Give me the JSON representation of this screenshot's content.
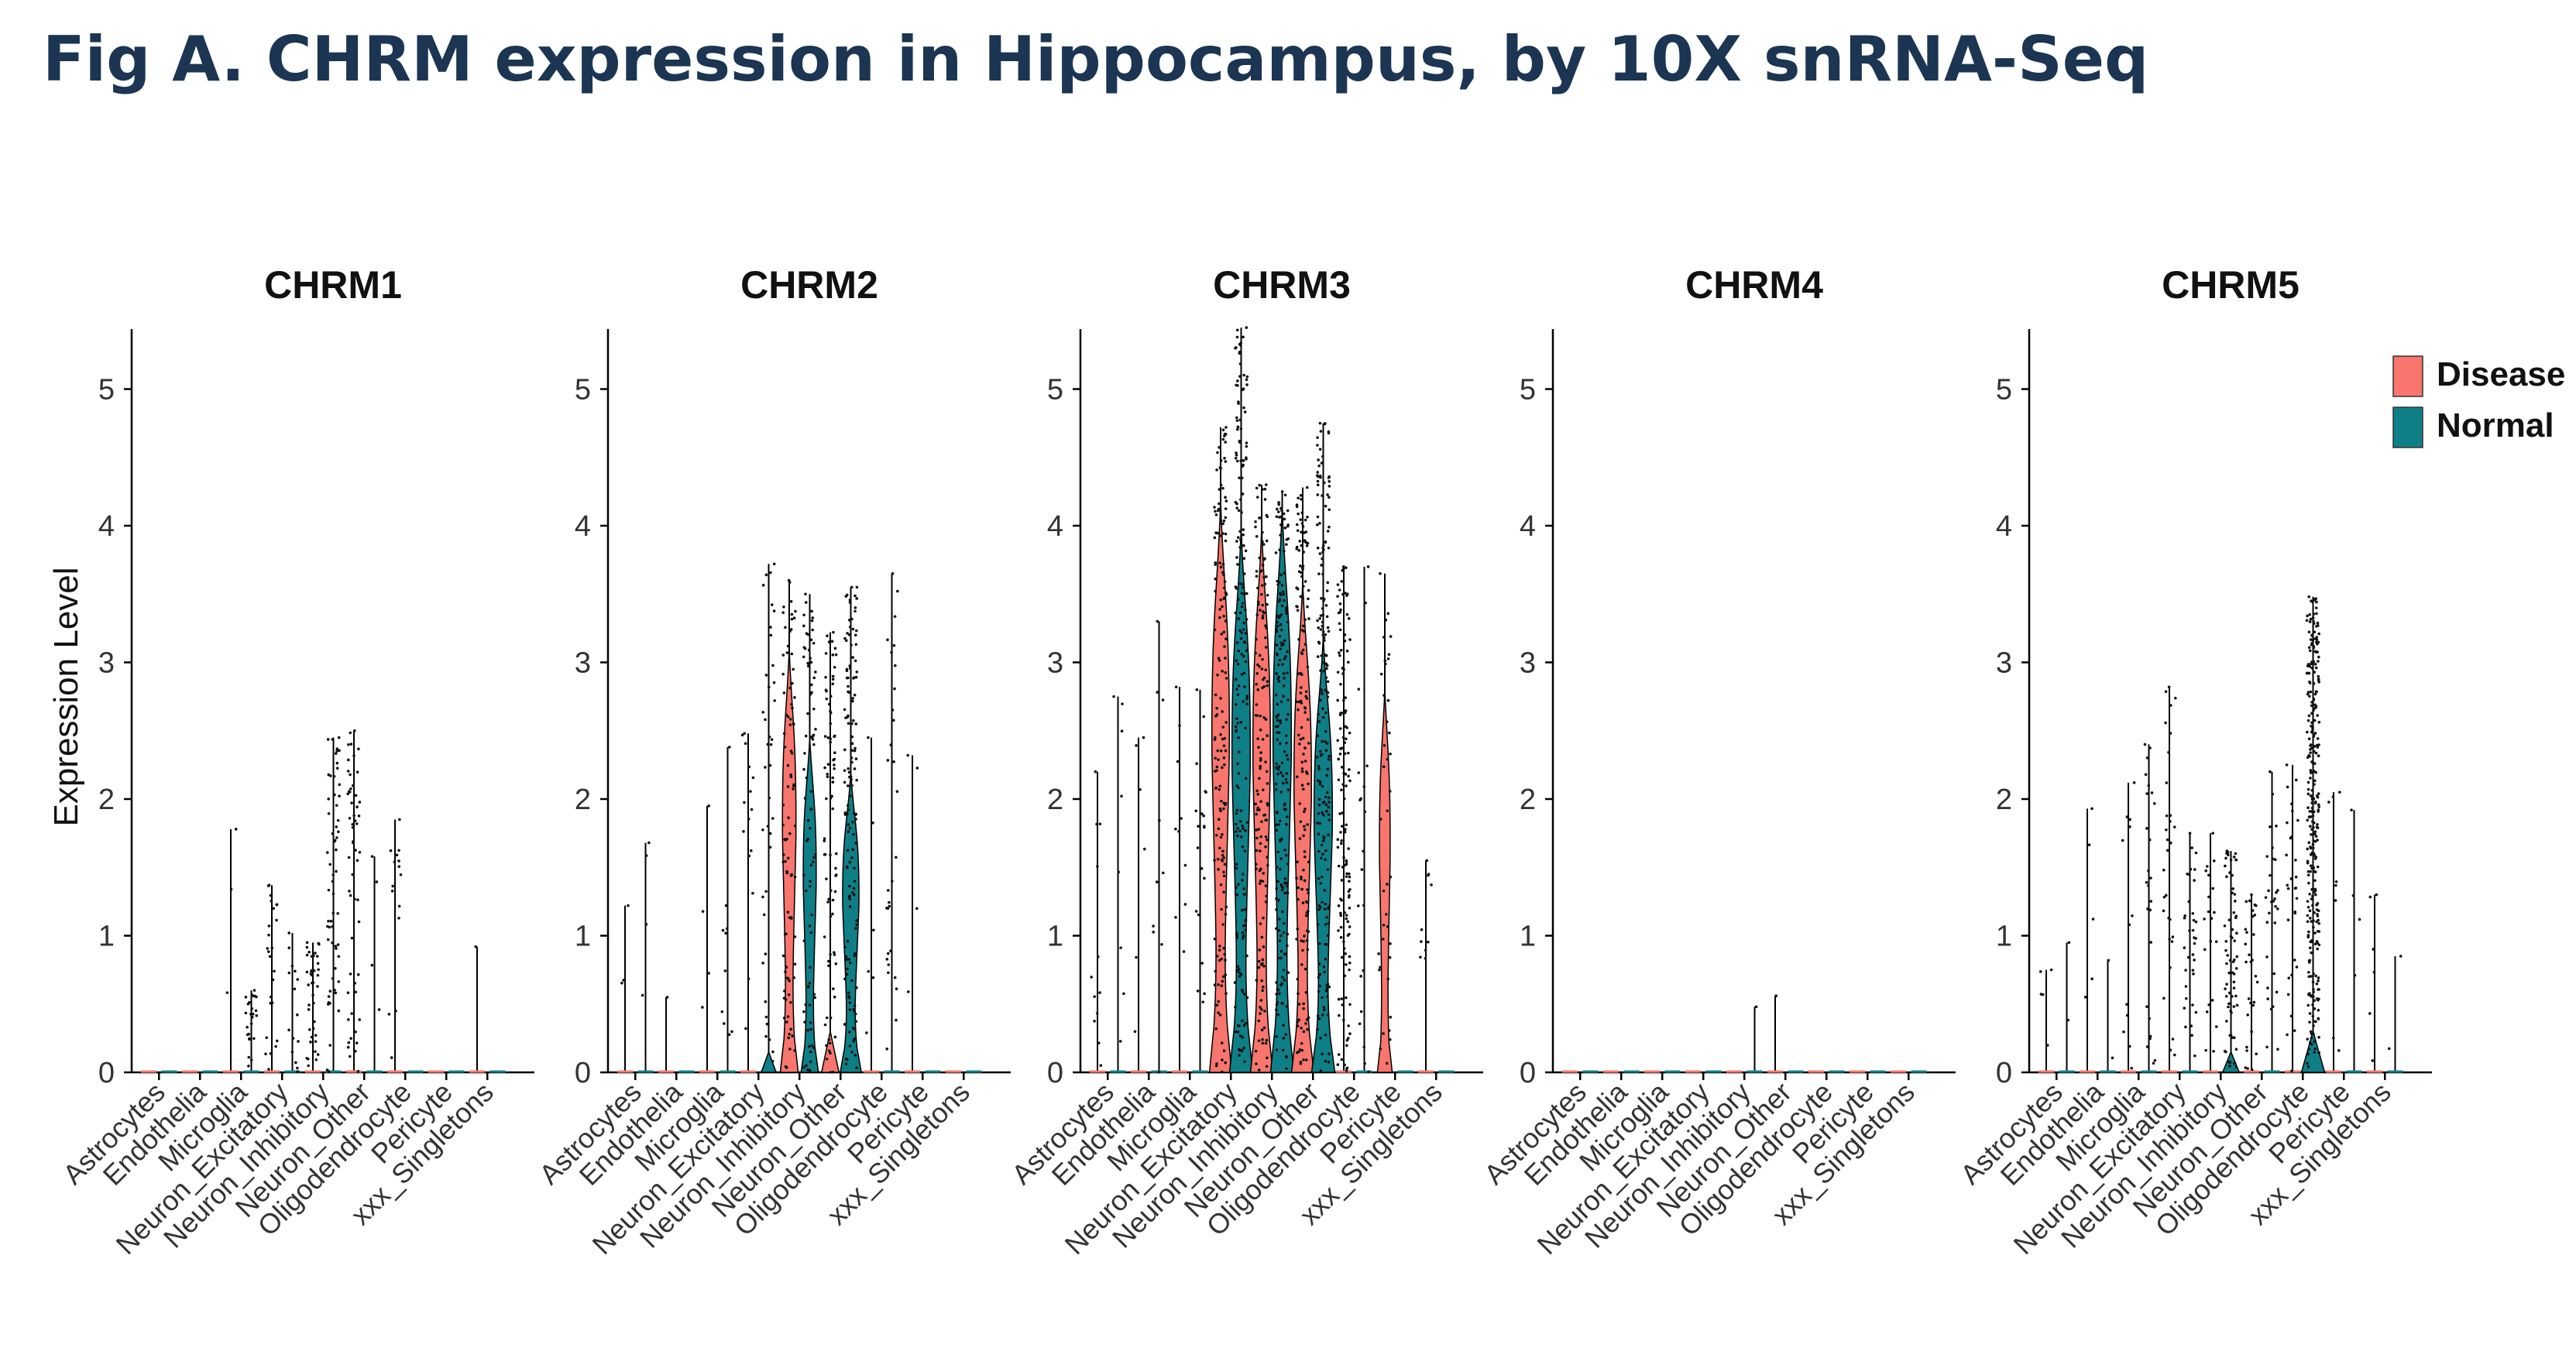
{
  "figure": {
    "title": "Fig A. CHRM expression in Hippocampus, by 10X snRNA-Seq"
  },
  "colors": {
    "Disease": "#f8766d",
    "Normal": "#0e7f87",
    "points": "#111111",
    "axis": "#000000",
    "title": "#1b3552"
  },
  "chart_data": {
    "type": "violin",
    "ylabel": "Expression Level",
    "ylim": [
      0,
      5.4
    ],
    "yticks": [
      "0",
      "1",
      "2",
      "3",
      "4",
      "5"
    ],
    "grid": false,
    "legend": {
      "position": "top-right",
      "entries": [
        "Disease",
        "Normal"
      ]
    },
    "categories": [
      "Astrocytes",
      "Endothelia",
      "Microglia",
      "Neuron_Excitatory",
      "Neuron_Inhibitory",
      "Neuron_Other",
      "Oligodendrocyte",
      "Pericyte",
      "xxx_Singletons"
    ],
    "panels": [
      {
        "title": "CHRM1",
        "groups": [
          {
            "category": "Astrocytes",
            "condition": "Disease",
            "max": 0.0,
            "violin_max": 0.0,
            "density": 0
          },
          {
            "category": "Astrocytes",
            "condition": "Normal",
            "max": 0.0,
            "violin_max": 0.0,
            "density": 0
          },
          {
            "category": "Endothelia",
            "condition": "Disease",
            "max": 0.0,
            "violin_max": 0.0,
            "density": 0
          },
          {
            "category": "Endothelia",
            "condition": "Normal",
            "max": 0.0,
            "violin_max": 0.0,
            "density": 0
          },
          {
            "category": "Microglia",
            "condition": "Disease",
            "max": 1.78,
            "violin_max": 0.0,
            "density": 3
          },
          {
            "category": "Microglia",
            "condition": "Normal",
            "max": 0.6,
            "violin_max": 0.0,
            "density": 25
          },
          {
            "category": "Neuron_Excitatory",
            "condition": "Disease",
            "max": 1.37,
            "violin_max": 0.0,
            "density": 25
          },
          {
            "category": "Neuron_Excitatory",
            "condition": "Normal",
            "max": 1.02,
            "violin_max": 0.0,
            "density": 15
          },
          {
            "category": "Neuron_Inhibitory",
            "condition": "Disease",
            "max": 0.95,
            "violin_max": 0.0,
            "density": 40
          },
          {
            "category": "Neuron_Inhibitory",
            "condition": "Normal",
            "max": 2.45,
            "violin_max": 0.0,
            "density": 60
          },
          {
            "category": "Neuron_Other",
            "condition": "Disease",
            "max": 2.5,
            "violin_max": 0.0,
            "density": 55
          },
          {
            "category": "Neuron_Other",
            "condition": "Normal",
            "max": 1.58,
            "violin_max": 0.0,
            "density": 4
          },
          {
            "category": "Oligodendrocyte",
            "condition": "Disease",
            "max": 1.85,
            "violin_max": 0.0,
            "density": 15
          },
          {
            "category": "Oligodendrocyte",
            "condition": "Normal",
            "max": 0.0,
            "violin_max": 0.0,
            "density": 0
          },
          {
            "category": "Pericyte",
            "condition": "Disease",
            "max": 0.0,
            "violin_max": 0.0,
            "density": 0
          },
          {
            "category": "Pericyte",
            "condition": "Normal",
            "max": 0.0,
            "violin_max": 0.0,
            "density": 0
          },
          {
            "category": "xxx_Singletons",
            "condition": "Disease",
            "max": 0.92,
            "violin_max": 0.0,
            "density": 1
          },
          {
            "category": "xxx_Singletons",
            "condition": "Normal",
            "max": 0.0,
            "violin_max": 0.0,
            "density": 0
          }
        ]
      },
      {
        "title": "CHRM2",
        "groups": [
          {
            "category": "Astrocytes",
            "condition": "Disease",
            "max": 1.22,
            "violin_max": 0.0,
            "density": 3
          },
          {
            "category": "Astrocytes",
            "condition": "Normal",
            "max": 1.68,
            "violin_max": 0.0,
            "density": 4
          },
          {
            "category": "Endothelia",
            "condition": "Disease",
            "max": 0.55,
            "violin_max": 0.0,
            "density": 1
          },
          {
            "category": "Endothelia",
            "condition": "Normal",
            "max": 0.0,
            "violin_max": 0.0,
            "density": 0
          },
          {
            "category": "Microglia",
            "condition": "Disease",
            "max": 1.95,
            "violin_max": 0.0,
            "density": 4
          },
          {
            "category": "Microglia",
            "condition": "Normal",
            "max": 2.38,
            "violin_max": 0.0,
            "density": 10
          },
          {
            "category": "Neuron_Excitatory",
            "condition": "Disease",
            "max": 2.48,
            "violin_max": 0.0,
            "density": 15
          },
          {
            "category": "Neuron_Excitatory",
            "condition": "Normal",
            "max": 3.72,
            "violin_max": 0.15,
            "density": 40
          },
          {
            "category": "Neuron_Inhibitory",
            "condition": "Disease",
            "max": 3.6,
            "violin_max": 3.1,
            "density": 90
          },
          {
            "category": "Neuron_Inhibitory",
            "condition": "Normal",
            "max": 3.5,
            "violin_max": 2.45,
            "density": 80
          },
          {
            "category": "Neuron_Other",
            "condition": "Disease",
            "max": 3.22,
            "violin_max": 0.3,
            "density": 80
          },
          {
            "category": "Neuron_Other",
            "condition": "Normal",
            "max": 3.55,
            "violin_max": 2.2,
            "density": 140
          },
          {
            "category": "Oligodendrocyte",
            "condition": "Disease",
            "max": 2.45,
            "violin_max": 0.0,
            "density": 6
          },
          {
            "category": "Oligodendrocyte",
            "condition": "Normal",
            "max": 3.65,
            "violin_max": 0.0,
            "density": 30
          },
          {
            "category": "Pericyte",
            "condition": "Disease",
            "max": 2.32,
            "violin_max": 0.0,
            "density": 4
          },
          {
            "category": "Pericyte",
            "condition": "Normal",
            "max": 0.0,
            "violin_max": 0.0,
            "density": 0
          },
          {
            "category": "xxx_Singletons",
            "condition": "Disease",
            "max": 0.0,
            "violin_max": 0.0,
            "density": 0
          },
          {
            "category": "xxx_Singletons",
            "condition": "Normal",
            "max": 0.0,
            "violin_max": 0.0,
            "density": 0
          }
        ]
      },
      {
        "title": "CHRM3",
        "groups": [
          {
            "category": "Astrocytes",
            "condition": "Disease",
            "max": 2.2,
            "violin_max": 0.0,
            "density": 12
          },
          {
            "category": "Astrocytes",
            "condition": "Normal",
            "max": 2.75,
            "violin_max": 0.0,
            "density": 8
          },
          {
            "category": "Endothelia",
            "condition": "Disease",
            "max": 2.45,
            "violin_max": 0.0,
            "density": 6
          },
          {
            "category": "Endothelia",
            "condition": "Normal",
            "max": 3.3,
            "violin_max": 0.0,
            "density": 10
          },
          {
            "category": "Microglia",
            "condition": "Disease",
            "max": 2.82,
            "violin_max": 0.0,
            "density": 10
          },
          {
            "category": "Microglia",
            "condition": "Normal",
            "max": 2.8,
            "violin_max": 0.0,
            "density": 20
          },
          {
            "category": "Neuron_Excitatory",
            "condition": "Disease",
            "max": 4.72,
            "violin_max": 4.2,
            "density": 160
          },
          {
            "category": "Neuron_Excitatory",
            "condition": "Normal",
            "max": 5.45,
            "violin_max": 4.0,
            "density": 200
          },
          {
            "category": "Neuron_Inhibitory",
            "condition": "Disease",
            "max": 4.3,
            "violin_max": 4.0,
            "density": 160
          },
          {
            "category": "Neuron_Inhibitory",
            "condition": "Normal",
            "max": 4.25,
            "violin_max": 4.15,
            "density": 200
          },
          {
            "category": "Neuron_Other",
            "condition": "Disease",
            "max": 4.28,
            "violin_max": 3.6,
            "density": 160
          },
          {
            "category": "Neuron_Other",
            "condition": "Normal",
            "max": 4.75,
            "violin_max": 3.2,
            "density": 200
          },
          {
            "category": "Oligodendrocyte",
            "condition": "Disease",
            "max": 3.7,
            "violin_max": 0.0,
            "density": 140
          },
          {
            "category": "Oligodendrocyte",
            "condition": "Normal",
            "max": 3.7,
            "violin_max": 0.0,
            "density": 20
          },
          {
            "category": "Pericyte",
            "condition": "Disease",
            "max": 3.65,
            "violin_max": 2.8,
            "density": 40
          },
          {
            "category": "Pericyte",
            "condition": "Normal",
            "max": 0.0,
            "violin_max": 0.0,
            "density": 0
          },
          {
            "category": "xxx_Singletons",
            "condition": "Disease",
            "max": 1.55,
            "violin_max": 0.0,
            "density": 10
          },
          {
            "category": "xxx_Singletons",
            "condition": "Normal",
            "max": 0.0,
            "violin_max": 0.0,
            "density": 0
          }
        ]
      },
      {
        "title": "CHRM4",
        "groups": [
          {
            "category": "Astrocytes",
            "condition": "Disease",
            "max": 0.0,
            "violin_max": 0.0,
            "density": 0
          },
          {
            "category": "Astrocytes",
            "condition": "Normal",
            "max": 0.0,
            "violin_max": 0.0,
            "density": 0
          },
          {
            "category": "Endothelia",
            "condition": "Disease",
            "max": 0.0,
            "violin_max": 0.0,
            "density": 0
          },
          {
            "category": "Endothelia",
            "condition": "Normal",
            "max": 0.0,
            "violin_max": 0.0,
            "density": 0
          },
          {
            "category": "Microglia",
            "condition": "Disease",
            "max": 0.0,
            "violin_max": 0.0,
            "density": 0
          },
          {
            "category": "Microglia",
            "condition": "Normal",
            "max": 0.0,
            "violin_max": 0.0,
            "density": 0
          },
          {
            "category": "Neuron_Excitatory",
            "condition": "Disease",
            "max": 0.0,
            "violin_max": 0.0,
            "density": 0
          },
          {
            "category": "Neuron_Excitatory",
            "condition": "Normal",
            "max": 0.0,
            "violin_max": 0.0,
            "density": 0
          },
          {
            "category": "Neuron_Inhibitory",
            "condition": "Disease",
            "max": 0.0,
            "violin_max": 0.0,
            "density": 0
          },
          {
            "category": "Neuron_Inhibitory",
            "condition": "Normal",
            "max": 0.48,
            "violin_max": 0.0,
            "density": 1
          },
          {
            "category": "Neuron_Other",
            "condition": "Disease",
            "max": 0.56,
            "violin_max": 0.0,
            "density": 1
          },
          {
            "category": "Neuron_Other",
            "condition": "Normal",
            "max": 0.0,
            "violin_max": 0.0,
            "density": 0
          },
          {
            "category": "Oligodendrocyte",
            "condition": "Disease",
            "max": 0.0,
            "violin_max": 0.0,
            "density": 0
          },
          {
            "category": "Oligodendrocyte",
            "condition": "Normal",
            "max": 0.0,
            "violin_max": 0.0,
            "density": 0
          },
          {
            "category": "Pericyte",
            "condition": "Disease",
            "max": 0.0,
            "violin_max": 0.0,
            "density": 0
          },
          {
            "category": "Pericyte",
            "condition": "Normal",
            "max": 0.0,
            "violin_max": 0.0,
            "density": 0
          },
          {
            "category": "xxx_Singletons",
            "condition": "Disease",
            "max": 0.0,
            "violin_max": 0.0,
            "density": 0
          },
          {
            "category": "xxx_Singletons",
            "condition": "Normal",
            "max": 0.0,
            "violin_max": 0.0,
            "density": 0
          }
        ]
      },
      {
        "title": "CHRM5",
        "groups": [
          {
            "category": "Astrocytes",
            "condition": "Disease",
            "max": 0.75,
            "violin_max": 0.0,
            "density": 5
          },
          {
            "category": "Astrocytes",
            "condition": "Normal",
            "max": 0.95,
            "violin_max": 0.0,
            "density": 2
          },
          {
            "category": "Endothelia",
            "condition": "Disease",
            "max": 1.93,
            "violin_max": 0.0,
            "density": 5
          },
          {
            "category": "Endothelia",
            "condition": "Normal",
            "max": 0.82,
            "violin_max": 0.0,
            "density": 2
          },
          {
            "category": "Microglia",
            "condition": "Disease",
            "max": 2.12,
            "violin_max": 0.0,
            "density": 12
          },
          {
            "category": "Microglia",
            "condition": "Normal",
            "max": 2.4,
            "violin_max": 0.0,
            "density": 25
          },
          {
            "category": "Neuron_Excitatory",
            "condition": "Disease",
            "max": 2.82,
            "violin_max": 0.0,
            "density": 30
          },
          {
            "category": "Neuron_Excitatory",
            "condition": "Normal",
            "max": 1.75,
            "violin_max": 0.0,
            "density": 35
          },
          {
            "category": "Neuron_Inhibitory",
            "condition": "Disease",
            "max": 1.75,
            "violin_max": 0.0,
            "density": 20
          },
          {
            "category": "Neuron_Inhibitory",
            "condition": "Normal",
            "max": 1.62,
            "violin_max": 0.15,
            "density": 70
          },
          {
            "category": "Neuron_Other",
            "condition": "Disease",
            "max": 1.3,
            "violin_max": 0.0,
            "density": 30
          },
          {
            "category": "Neuron_Other",
            "condition": "Normal",
            "max": 2.2,
            "violin_max": 0.0,
            "density": 30
          },
          {
            "category": "Oligodendrocyte",
            "condition": "Disease",
            "max": 2.25,
            "violin_max": 0.0,
            "density": 30
          },
          {
            "category": "Oligodendrocyte",
            "condition": "Normal",
            "max": 3.48,
            "violin_max": 0.3,
            "density": 300
          },
          {
            "category": "Pericyte",
            "condition": "Disease",
            "max": 2.05,
            "violin_max": 0.0,
            "density": 8
          },
          {
            "category": "Pericyte",
            "condition": "Normal",
            "max": 1.92,
            "violin_max": 0.0,
            "density": 4
          },
          {
            "category": "xxx_Singletons",
            "condition": "Disease",
            "max": 1.3,
            "violin_max": 0.0,
            "density": 6
          },
          {
            "category": "xxx_Singletons",
            "condition": "Normal",
            "max": 0.85,
            "violin_max": 0.0,
            "density": 2
          }
        ]
      }
    ]
  }
}
